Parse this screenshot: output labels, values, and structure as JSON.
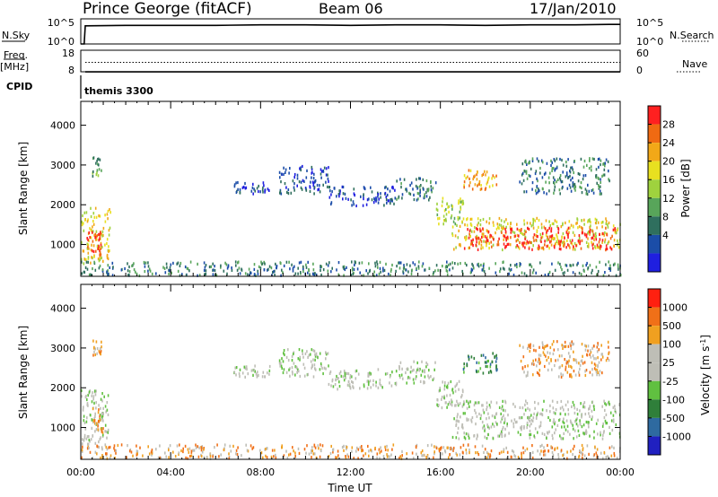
{
  "header": {
    "station": "Prince George (fitACF)",
    "beam": "Beam 06",
    "date": "17/Jan/2010"
  },
  "time_axis": {
    "label": "Time UT",
    "ticks": [
      "00:00",
      "04:00",
      "08:00",
      "12:00",
      "16:00",
      "20:00",
      "00:00"
    ]
  },
  "colors": {
    "velocity_ground": "#bebeb6",
    "trace": "#000000"
  },
  "chart_data": [
    {
      "type": "line",
      "panel": "noise",
      "left_label": "N.Sky",
      "right_label": "N.Search",
      "left_ticks": [
        "10^5",
        "10^0"
      ],
      "right_ticks": [
        "10^5",
        "10^0"
      ],
      "series": [
        {
          "name": "N.Sky",
          "style": "solid",
          "x_hours": [
            0,
            0.15,
            0.2,
            2,
            4,
            6,
            8,
            10,
            12,
            14,
            16,
            18,
            20,
            22,
            23.5,
            24
          ],
          "y_log10": [
            0,
            0,
            3.6,
            3.7,
            3.7,
            3.7,
            3.8,
            3.8,
            3.7,
            3.8,
            3.8,
            3.7,
            3.8,
            3.8,
            3.9,
            3.9
          ]
        }
      ]
    },
    {
      "type": "line",
      "panel": "frequency",
      "left_label": "Freq. [MHz]",
      "right_label": "Nave",
      "left_ticks": [
        "18",
        "8"
      ],
      "right_ticks": [
        "60",
        "0"
      ],
      "series": [
        {
          "name": "Freq.",
          "style": "solid",
          "x_hours": [
            0.2,
            24
          ],
          "y": [
            8.4,
            8.4
          ]
        },
        {
          "name": "Nave",
          "style": "dotted",
          "x_hours": [
            0.2,
            24
          ],
          "y": [
            12.8,
            12.8
          ]
        }
      ]
    },
    {
      "type": "table",
      "panel": "cpid",
      "label": "CPID",
      "program": "themis 3300"
    },
    {
      "type": "heatmap",
      "panel": "power",
      "ylabel": "Slant Range [km]",
      "y_ticks": [
        1000,
        2000,
        3000,
        4000
      ],
      "ylim": [
        200,
        4600
      ],
      "xlim_hours": [
        0,
        24
      ],
      "colorbar": {
        "label": "Power [dB]",
        "ticks": [
          "28",
          "24",
          "20",
          "16",
          "12",
          "8",
          "4"
        ],
        "colors": [
          "#1f1fe0",
          "#1b4da8",
          "#2f6f5e",
          "#58a55a",
          "#9fd23e",
          "#e8e020",
          "#f2a818",
          "#f06a12",
          "#ff2020"
        ]
      },
      "regions": [
        {
          "t": [
            0.0,
            1.3
          ],
          "r": [
            550,
            1950
          ],
          "level": 5
        },
        {
          "t": [
            0.2,
            0.9
          ],
          "r": [
            750,
            1350
          ],
          "level": 8
        },
        {
          "t": [
            0.5,
            0.9
          ],
          "r": [
            2750,
            3250
          ],
          "level": 3
        },
        {
          "t": [
            6.6,
            8.4
          ],
          "r": [
            2300,
            2600
          ],
          "level": 1
        },
        {
          "t": [
            8.8,
            11.0
          ],
          "r": [
            2300,
            3000
          ],
          "level": 1
        },
        {
          "t": [
            11.0,
            14.0
          ],
          "r": [
            2000,
            2500
          ],
          "level": 1
        },
        {
          "t": [
            14.0,
            15.8
          ],
          "r": [
            2150,
            2700
          ],
          "level": 2
        },
        {
          "t": [
            15.8,
            17.0
          ],
          "r": [
            1500,
            2200
          ],
          "level": 4
        },
        {
          "t": [
            16.5,
            24.0
          ],
          "r": [
            900,
            1700
          ],
          "level": 5
        },
        {
          "t": [
            17.0,
            23.8
          ],
          "r": [
            900,
            1450
          ],
          "level": 8
        },
        {
          "t": [
            17.0,
            18.5
          ],
          "r": [
            2400,
            2900
          ],
          "level": 6
        },
        {
          "t": [
            19.5,
            23.5
          ],
          "r": [
            2300,
            3200
          ],
          "level": 2
        },
        {
          "t": [
            0.0,
            24.0
          ],
          "r": [
            250,
            600
          ],
          "level": 2
        }
      ]
    },
    {
      "type": "heatmap",
      "panel": "velocity",
      "ylabel": "Slant Range [km]",
      "y_ticks": [
        1000,
        2000,
        3000,
        4000
      ],
      "ylim": [
        200,
        4600
      ],
      "xlim_hours": [
        0,
        24
      ],
      "colorbar": {
        "label": "Velocity [m s-1]",
        "ticks": [
          "1000",
          "500",
          "100",
          "25",
          "-25",
          "-100",
          "-500",
          "-1000"
        ],
        "colors": [
          "#2020c0",
          "#2e6aa0",
          "#2f7f3a",
          "#60c040",
          "#bebeb6",
          "#bebeb6",
          "#f0a020",
          "#f07018",
          "#ff2010"
        ]
      },
      "regions": [
        {
          "t": [
            0.0,
            1.2
          ],
          "r": [
            600,
            2000
          ],
          "level": 4
        },
        {
          "t": [
            0.5,
            1.0
          ],
          "r": [
            900,
            1600
          ],
          "level": 6
        },
        {
          "t": [
            0.5,
            0.9
          ],
          "r": [
            2800,
            3300
          ],
          "level": 6
        },
        {
          "t": [
            6.6,
            8.4
          ],
          "r": [
            2300,
            2600
          ],
          "level": 4
        },
        {
          "t": [
            8.8,
            11.0
          ],
          "r": [
            2300,
            3000
          ],
          "level": 4
        },
        {
          "t": [
            11.0,
            14.0
          ],
          "r": [
            2000,
            2500
          ],
          "level": 4
        },
        {
          "t": [
            14.0,
            15.8
          ],
          "r": [
            2150,
            2700
          ],
          "level": 4
        },
        {
          "t": [
            15.8,
            17.0
          ],
          "r": [
            1500,
            2200
          ],
          "level": 4
        },
        {
          "t": [
            16.5,
            24.0
          ],
          "r": [
            750,
            1700
          ],
          "level": 4
        },
        {
          "t": [
            17.0,
            18.5
          ],
          "r": [
            2400,
            2900
          ],
          "level": 2
        },
        {
          "t": [
            19.5,
            23.5
          ],
          "r": [
            2300,
            3200
          ],
          "level": 6
        },
        {
          "t": [
            0.0,
            24.0
          ],
          "r": [
            250,
            600
          ],
          "level": 6
        }
      ]
    }
  ]
}
